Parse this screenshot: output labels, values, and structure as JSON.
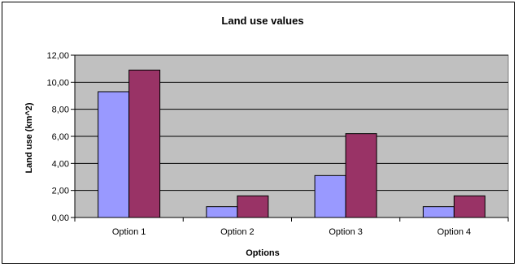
{
  "chart_data": {
    "type": "bar",
    "title": "Land use values",
    "xlabel": "Options",
    "ylabel": "Land use (km^2)",
    "categories": [
      "Option 1",
      "Option 2",
      "Option 3",
      "Option 4"
    ],
    "yticks": [
      "0,00",
      "2,00",
      "4,00",
      "6,00",
      "8,00",
      "10,00",
      "12,00"
    ],
    "ylim": [
      0,
      12
    ],
    "grid": true,
    "legend": "none",
    "plot_background": "#c0c0c0",
    "series": [
      {
        "values": [
          9.3,
          0.8,
          3.1,
          0.8
        ],
        "color": "#9999ff"
      },
      {
        "values": [
          10.9,
          1.6,
          6.2,
          1.6
        ],
        "color": "#993366"
      }
    ]
  }
}
